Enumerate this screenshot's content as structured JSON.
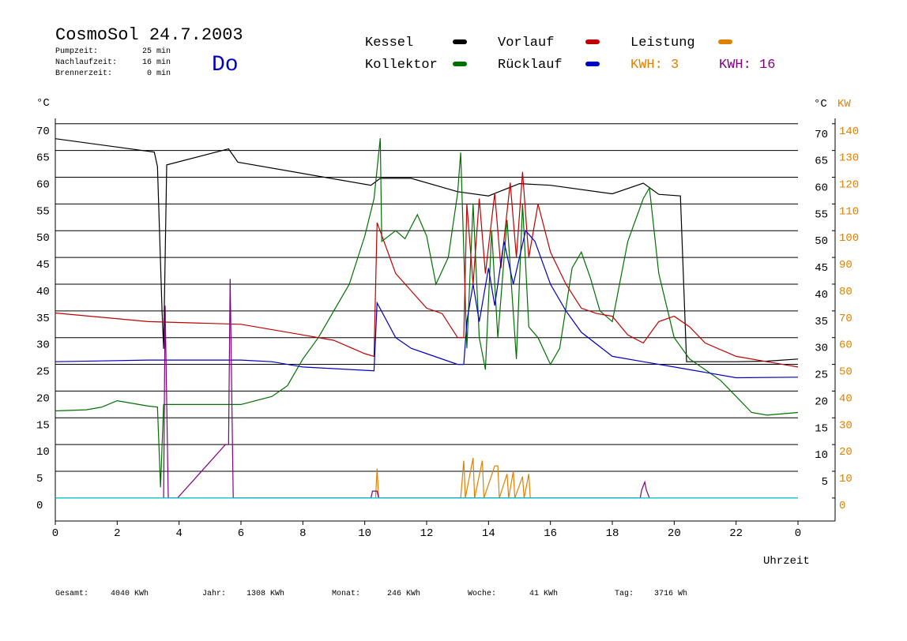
{
  "chart_data": {
    "type": "line",
    "title": "CosmoSol 24.7.2003",
    "info": [
      {
        "label": "Pumpzeit:",
        "value": "25 min"
      },
      {
        "label": "Nachlaufzeit:",
        "value": "16 min"
      },
      {
        "label": "Brennerzeit:",
        "value": "0 min"
      }
    ],
    "day": "Do",
    "kwh_labels": [
      {
        "text": "KWH: 3",
        "color": "#e08000"
      },
      {
        "text": "KWH: 16",
        "color": "#800080"
      }
    ],
    "y_unit": "°C",
    "y_unit_right": "°C",
    "y2_unit": "KW",
    "x_label": "Uhrzeit",
    "xlim": [
      0,
      25.2
    ],
    "xticks": [
      0,
      2,
      4,
      6,
      8,
      10,
      12,
      14,
      16,
      18,
      20,
      22,
      {
        "value": 24,
        "label": "0"
      }
    ],
    "ylim": [
      -4.3,
      71
    ],
    "yticks": [
      0,
      5,
      10,
      15,
      20,
      25,
      30,
      35,
      40,
      45,
      50,
      55,
      60,
      65,
      70
    ],
    "yticks_right": [
      5,
      10,
      15,
      20,
      25,
      30,
      35,
      40,
      45,
      50,
      55,
      60,
      65,
      70
    ],
    "y2lim": [
      -8.6,
      142
    ],
    "y2ticks": [
      0,
      10,
      20,
      30,
      40,
      50,
      60,
      70,
      80,
      90,
      100,
      110,
      120,
      130,
      140
    ],
    "grid": true,
    "series": [
      {
        "name": "Kessel",
        "color": "#000000",
        "x": [
          0,
          3.2,
          3.3,
          3.45,
          3.5,
          3.6,
          5.6,
          5.9,
          10.2,
          10.5,
          11.5,
          13,
          14,
          15,
          16,
          18,
          19,
          19.5,
          20.2,
          20.4,
          22,
          23,
          24
        ],
        "values": [
          67.2,
          64.7,
          62,
          35,
          27.9,
          62.3,
          65.3,
          62.8,
          58.5,
          59.8,
          59.8,
          57.3,
          56.5,
          58.8,
          58.5,
          56.9,
          58.9,
          56.8,
          56.5,
          25.5,
          25.5,
          25.6,
          26
        ]
      },
      {
        "name": "Kollektor",
        "color": "#007000",
        "x": [
          0,
          1,
          1.5,
          2,
          3,
          3.3,
          3.4,
          3.5,
          4,
          5,
          6,
          7,
          7.5,
          8,
          8.5,
          9,
          9.5,
          10,
          10.3,
          10.5,
          10.55,
          11,
          11.3,
          11.7,
          12,
          12.3,
          12.7,
          13,
          13.1,
          13.3,
          13.5,
          13.7,
          13.9,
          14.1,
          14.3,
          14.6,
          14.9,
          15.1,
          15.3,
          15.6,
          16,
          16.3,
          16.7,
          17,
          17.3,
          17.6,
          18,
          18.5,
          19,
          19.2,
          19.5,
          20,
          20.5,
          21,
          21.5,
          22,
          22.5,
          23,
          24
        ],
        "values": [
          16.3,
          16.5,
          17,
          18.2,
          17.2,
          17,
          2,
          17.5,
          17.5,
          17.5,
          17.5,
          19,
          21,
          26,
          30,
          35,
          40,
          49,
          56,
          67.3,
          48,
          50,
          48.5,
          53,
          49,
          40,
          45,
          57,
          64.6,
          28,
          55,
          30,
          24,
          50,
          30,
          52,
          26,
          55,
          32,
          30,
          25,
          28,
          43,
          46,
          41,
          35,
          33,
          48,
          56,
          58,
          42,
          30,
          26,
          24,
          22,
          19,
          16,
          15.5,
          16
        ]
      },
      {
        "name": "Vorlauf",
        "color": "#c00000",
        "x": [
          0,
          3,
          6,
          8,
          9,
          10,
          10.3,
          10.4,
          11,
          12,
          12.5,
          13,
          13.2,
          13.3,
          13.5,
          13.7,
          13.9,
          14.2,
          14.4,
          14.7,
          14.9,
          15.1,
          15.3,
          15.6,
          16,
          16.5,
          17,
          17.5,
          18,
          18.5,
          19,
          19.5,
          20,
          20.5,
          21,
          22,
          23,
          24
        ],
        "values": [
          34.6,
          33,
          32.5,
          30.5,
          29.5,
          27,
          26.5,
          51.5,
          42,
          35.5,
          34.5,
          30,
          30,
          55,
          40,
          56,
          42,
          57,
          43,
          59,
          45,
          61,
          45,
          55,
          46,
          40,
          35.5,
          34.5,
          34,
          30.5,
          29,
          33,
          34,
          32,
          29,
          26.5,
          25.5,
          24.5
        ]
      },
      {
        "name": "Rücklauf",
        "color": "#0000c0",
        "x": [
          0,
          3,
          6,
          7,
          8,
          10.3,
          10.4,
          11,
          11.5,
          12,
          13,
          13.2,
          13.3,
          13.5,
          13.7,
          14,
          14.2,
          14.5,
          14.8,
          15.2,
          15.5,
          16,
          16.5,
          17,
          18,
          19,
          20,
          21,
          22,
          24
        ],
        "values": [
          25.5,
          25.8,
          25.8,
          25.5,
          24.5,
          23.8,
          36.5,
          30,
          28,
          27,
          25,
          25,
          33,
          40,
          33,
          43,
          36,
          48,
          40,
          50,
          48,
          40,
          35,
          31,
          26.5,
          25.5,
          24.5,
          23.5,
          22.5,
          22.6
        ]
      },
      {
        "name": "Leistung",
        "color": "#e08000",
        "axis": "y2",
        "x": [
          10.35,
          10.4,
          10.45,
          13.1,
          13.2,
          13.25,
          13.5,
          13.55,
          13.8,
          13.85,
          14.2,
          14.3,
          14.35,
          14.6,
          14.65,
          14.8,
          14.85,
          15.1,
          15.15,
          15.3,
          15.35
        ],
        "values": [
          0,
          11,
          0,
          0,
          14,
          0,
          15,
          0,
          14,
          0,
          12,
          12,
          0,
          9,
          0,
          10,
          0,
          8,
          0,
          9,
          0
        ]
      },
      {
        "color": "#800080",
        "x": [
          3.5,
          3.55,
          3.65,
          3.95,
          5.5,
          5.6,
          5.65,
          5.75,
          10.2,
          10.25,
          10.4,
          10.45,
          18.9,
          18.95,
          19.05,
          19.1,
          19.2
        ],
        "values": [
          0,
          36,
          0,
          0,
          10,
          10,
          41,
          0,
          0,
          1.3,
          1.3,
          0,
          0,
          1.5,
          3,
          1.5,
          0
        ]
      },
      {
        "color": "#00c8c8",
        "x": [
          0,
          24
        ],
        "values": [
          0,
          0
        ]
      }
    ],
    "footer": [
      {
        "label": "Gesamt:",
        "value": "4040 KWh"
      },
      {
        "label": "Jahr:",
        "value": "1308 KWh"
      },
      {
        "label": "Monat:",
        "value": "246 KWh"
      },
      {
        "label": "Woche:",
        "value": "41 KWh"
      },
      {
        "label": "Tag:",
        "value": "3716 Wh"
      }
    ]
  }
}
